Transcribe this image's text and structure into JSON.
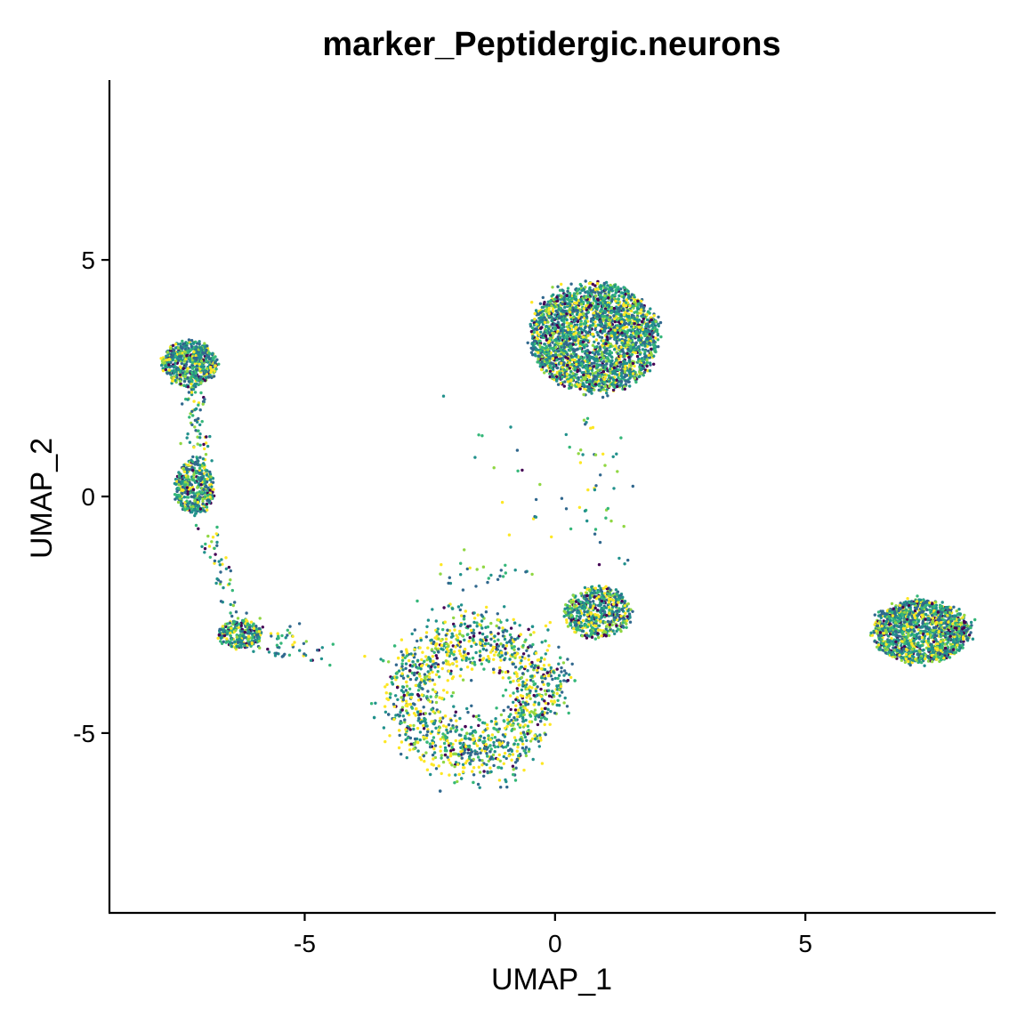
{
  "chart_data": {
    "type": "scatter",
    "title": "marker_Peptidergic.neurons",
    "xlabel": "UMAP_1",
    "ylabel": "UMAP_2",
    "xlim": [
      -8.9,
      8.8
    ],
    "ylim": [
      -8.8,
      8.8
    ],
    "x_ticks": [
      -5,
      0,
      5
    ],
    "x_tick_labels": [
      "-5",
      "0",
      "5"
    ],
    "y_ticks": [
      -5,
      0,
      5
    ],
    "y_tick_labels": [
      "-5",
      "0",
      "5"
    ],
    "grid": false,
    "legend": "none",
    "color_scale": "viridis",
    "palette": [
      "#440154",
      "#31688e",
      "#21918c",
      "#35b779",
      "#90d743",
      "#fde725"
    ],
    "clusters": [
      {
        "name": "top-right cluster",
        "center": [
          0.8,
          3.35
        ],
        "spread": [
          1.05,
          0.95
        ],
        "n_points": 2600
      },
      {
        "name": "far-right cluster",
        "center": [
          7.3,
          -2.85
        ],
        "spread": [
          0.8,
          0.55
        ],
        "n_points": 1500
      },
      {
        "name": "top-left cluster",
        "center": [
          -7.3,
          2.8
        ],
        "spread": [
          0.45,
          0.4
        ],
        "n_points": 600
      },
      {
        "name": "mid-left cluster",
        "center": [
          -7.2,
          0.2
        ],
        "spread": [
          0.32,
          0.48
        ],
        "n_points": 430
      },
      {
        "name": "lower-left cluster",
        "center": [
          -6.3,
          -2.9
        ],
        "spread": [
          0.35,
          0.25
        ],
        "n_points": 260
      },
      {
        "name": "center-right cluster",
        "center": [
          0.85,
          -2.45
        ],
        "spread": [
          0.55,
          0.45
        ],
        "n_points": 560
      },
      {
        "name": "bottom loop cluster",
        "center": [
          -1.6,
          -4.2
        ],
        "spread": [
          1.3,
          1.3
        ],
        "n_points": 1500
      }
    ]
  }
}
